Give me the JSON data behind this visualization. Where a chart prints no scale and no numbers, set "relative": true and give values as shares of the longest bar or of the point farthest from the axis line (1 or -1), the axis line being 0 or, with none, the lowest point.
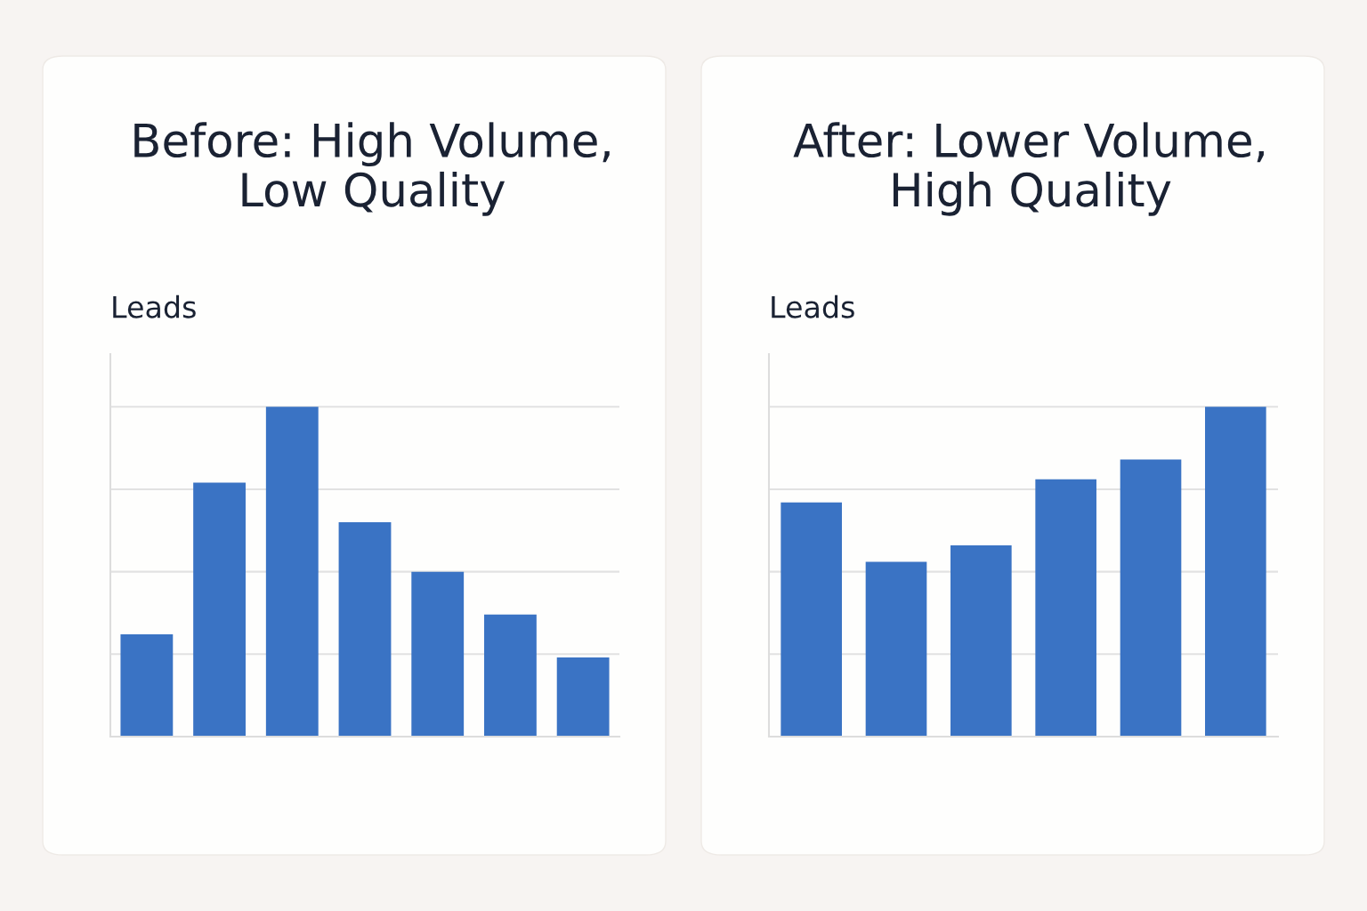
{
  "chart_data": [
    {
      "type": "bar",
      "title": "Before: High Volume,\nLow Quality",
      "ylabel": "Leads",
      "relative": true,
      "categories": [
        null,
        null,
        null,
        null,
        null,
        null,
        null
      ],
      "values": [
        0.31,
        0.77,
        1.0,
        0.65,
        0.5,
        0.37,
        0.24
      ],
      "color": "#3a73c4",
      "grid": "y",
      "tick_labels": false
    },
    {
      "type": "bar",
      "title": "After: Lower Volume,\nHigh Quality",
      "ylabel": "Leads",
      "relative": true,
      "categories": [
        null,
        null,
        null,
        null,
        null,
        null
      ],
      "values": [
        0.71,
        0.53,
        0.58,
        0.78,
        0.84,
        1.0
      ],
      "color": "#3a73c4",
      "grid": "y",
      "tick_labels": false
    }
  ]
}
